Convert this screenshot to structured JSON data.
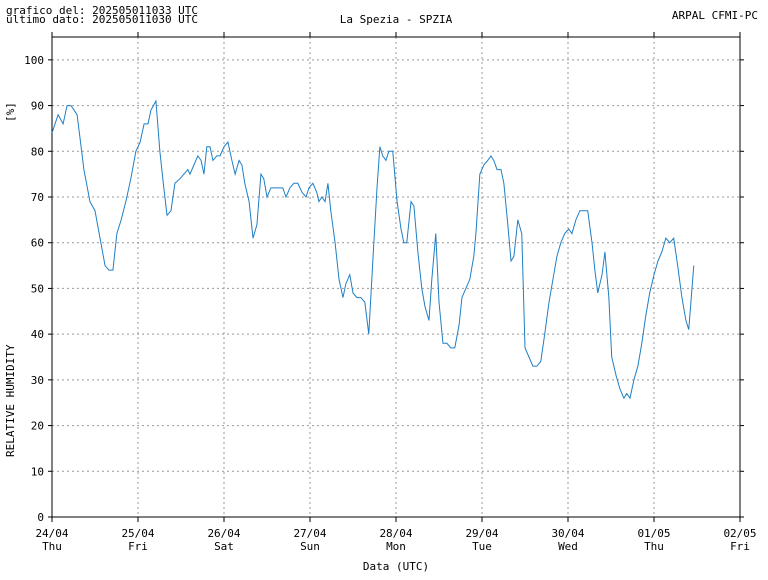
{
  "chart_data": {
    "type": "line",
    "header_left": [
      "grafico del: 202505011033 UTC",
      "ultimo dato: 202505011030 UTC"
    ],
    "title": "La Spezia - SPZIA",
    "header_right": "ARPAL CFMI-PC",
    "y_unit": "[%]",
    "ylabel": "RELATIVE HUMIDITY",
    "xlabel": "Data (UTC)",
    "xlim": [
      0,
      192
    ],
    "xticks": [
      {
        "value": 0,
        "label": "24/04",
        "weekday": "Thu"
      },
      {
        "value": 24,
        "label": "25/04",
        "weekday": "Fri"
      },
      {
        "value": 48,
        "label": "26/04",
        "weekday": "Sat"
      },
      {
        "value": 72,
        "label": "27/04",
        "weekday": "Sun"
      },
      {
        "value": 96,
        "label": "28/04",
        "weekday": "Mon"
      },
      {
        "value": 120,
        "label": "29/04",
        "weekday": "Tue"
      },
      {
        "value": 144,
        "label": "30/04",
        "weekday": "Wed"
      },
      {
        "value": 168,
        "label": "01/05",
        "weekday": "Thu"
      },
      {
        "value": 192,
        "label": "02/05",
        "weekday": "Fri"
      }
    ],
    "ylim": [
      0,
      105
    ],
    "yticks": [
      0,
      10,
      20,
      30,
      40,
      50,
      60,
      70,
      80,
      90,
      100
    ],
    "grid": true,
    "series": [
      {
        "color": "#1f7fc4",
        "x": [
          0,
          1.7,
          3.1,
          4.2,
          5.3,
          7.0,
          7.8,
          8.9,
          10.6,
          12.0,
          13.4,
          14.8,
          15.9,
          17.0,
          18.1,
          19.3,
          20.6,
          22.0,
          23.4,
          24.6,
          25.7,
          26.8,
          27.6,
          29.0,
          30.1,
          31.2,
          32.1,
          33.2,
          34.3,
          35.7,
          36.8,
          37.9,
          38.5,
          39.6,
          40.7,
          41.6,
          42.4,
          43.2,
          44.1,
          44.9,
          46.0,
          46.9,
          48.0,
          49.1,
          50.2,
          51.1,
          52.2,
          53.0,
          53.8,
          55.0,
          56.1,
          57.2,
          58.3,
          59.1,
          60.0,
          61.1,
          62.2,
          63.3,
          64.4,
          65.3,
          66.4,
          67.5,
          68.6,
          69.8,
          70.9,
          71.7,
          72.8,
          73.9,
          74.5,
          75.3,
          76.2,
          77.0,
          77.8,
          79.0,
          80.1,
          81.2,
          82.0,
          83.1,
          84.0,
          85.1,
          86.2,
          87.3,
          88.4,
          89.6,
          90.7,
          91.5,
          92.3,
          93.2,
          94.0,
          95.1,
          96.3,
          97.4,
          98.2,
          99.0,
          100.2,
          101.0,
          102.1,
          103.2,
          104.1,
          105.2,
          106.0,
          107.1,
          108.0,
          109.1,
          110.2,
          111.3,
          112.4,
          113.6,
          114.4,
          115.5,
          116.6,
          117.7,
          118.3,
          119.4,
          120.5,
          121.6,
          122.5,
          123.3,
          124.2,
          125.3,
          126.1,
          127.2,
          128.1,
          128.9,
          130.0,
          131.1,
          132.0,
          133.1,
          134.2,
          135.3,
          136.4,
          137.5,
          138.7,
          139.8,
          140.9,
          142.0,
          143.1,
          144.2,
          145.1,
          146.2,
          147.3,
          148.7,
          149.5,
          150.7,
          151.5,
          152.3,
          153.5,
          154.3,
          155.4,
          156.2,
          157.4,
          158.5,
          159.6,
          160.4,
          161.3,
          162.4,
          163.5,
          164.6,
          165.7,
          166.8,
          168.0,
          169.1,
          170.2,
          171.3,
          172.4,
          173.5,
          174.6,
          175.8,
          176.9,
          177.7,
          179.1
        ],
        "values": [
          84,
          88,
          86,
          90,
          90,
          88,
          83,
          76,
          69,
          67,
          61,
          55,
          54,
          54,
          62,
          65,
          69,
          74,
          80,
          82,
          86,
          86,
          89,
          91,
          80,
          72,
          66,
          67,
          73,
          74,
          75,
          76,
          75,
          77,
          79,
          78,
          75,
          81,
          81,
          78,
          79,
          79,
          81,
          82,
          78,
          75,
          78,
          77,
          73,
          69,
          61,
          64,
          75,
          74,
          70,
          72,
          72,
          72,
          72,
          70,
          72,
          73,
          73,
          71,
          70,
          72,
          73,
          71,
          69,
          70,
          69,
          73,
          67,
          60,
          52,
          48,
          51,
          53,
          49,
          48,
          48,
          47,
          40,
          57,
          72,
          81,
          79,
          78,
          80,
          80,
          69,
          63,
          60,
          60,
          69,
          68,
          58,
          50,
          46,
          43,
          52,
          62,
          47,
          38,
          38,
          37,
          37,
          42,
          48,
          50,
          52,
          57,
          62,
          75,
          77,
          78,
          79,
          78,
          76,
          76,
          73,
          64,
          56,
          57,
          65,
          62,
          37,
          35,
          33,
          33,
          34,
          40,
          47,
          52,
          57,
          60,
          62,
          63,
          62,
          65,
          67,
          67,
          67,
          60,
          54,
          49,
          53,
          58,
          48,
          35,
          31,
          28,
          26,
          27,
          26,
          30,
          33,
          38,
          44,
          49,
          53,
          56,
          58,
          61,
          60,
          61,
          55,
          48,
          43,
          41,
          55
        ]
      }
    ]
  }
}
